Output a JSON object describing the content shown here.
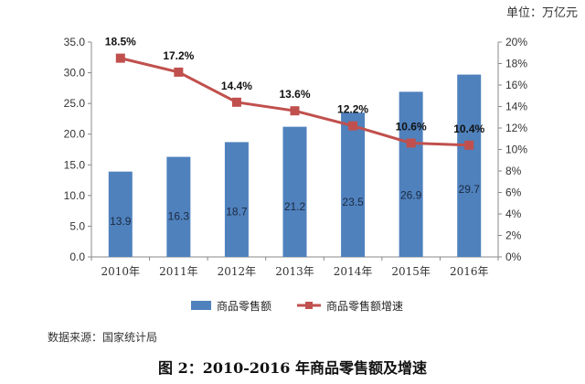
{
  "chart_data": {
    "type": "bar",
    "unit_label": "单位：万亿元",
    "categories": [
      "2010年",
      "2011年",
      "2012年",
      "2013年",
      "2014年",
      "2015年",
      "2016年"
    ],
    "series": [
      {
        "name": "商品零售额",
        "kind": "bar",
        "axis": "left",
        "values": [
          13.9,
          16.3,
          18.7,
          21.2,
          23.5,
          26.9,
          29.7
        ],
        "labels": [
          "13.9",
          "16.3",
          "18.7",
          "21.2",
          "23.5",
          "26.9",
          "29.7"
        ],
        "color": "#4f81bd"
      },
      {
        "name": "商品零售额增速",
        "kind": "line",
        "axis": "right",
        "values": [
          18.5,
          17.2,
          14.4,
          13.6,
          12.2,
          10.6,
          10.4
        ],
        "labels": [
          "18.5%",
          "17.2%",
          "14.4%",
          "13.6%",
          "12.2%",
          "10.6%",
          "10.4%"
        ],
        "color": "#c0504d"
      }
    ],
    "y_left": {
      "min": 0,
      "max": 35,
      "step": 5,
      "tick_labels": [
        "0.0",
        "5.0",
        "10.0",
        "15.0",
        "20.0",
        "25.0",
        "30.0",
        "35.0"
      ]
    },
    "y_right": {
      "min": 0,
      "max": 20,
      "step": 2,
      "tick_labels": [
        "0%",
        "2%",
        "4%",
        "6%",
        "8%",
        "10%",
        "12%",
        "14%",
        "16%",
        "18%",
        "20%"
      ]
    },
    "legend": {
      "position": "bottom",
      "items": [
        "商品零售额",
        "商品零售额增速"
      ]
    },
    "grid": false
  },
  "source_text": "数据来源：国家统计局",
  "caption": "图 2：2010-2016 年商品零售额及增速"
}
